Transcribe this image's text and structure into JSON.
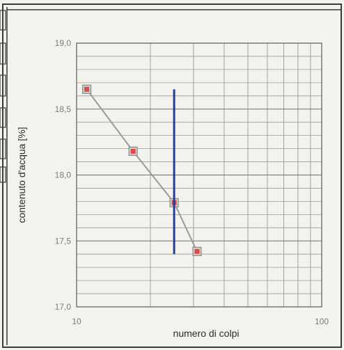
{
  "chart_data": {
    "type": "scatter",
    "xlabel": "numero di colpi",
    "ylabel": "contenuto d'acqua [%]",
    "x_scale": "log",
    "xlim": [
      10,
      100
    ],
    "ylim": [
      17.0,
      19.0
    ],
    "x_tick_labels": [
      "10",
      "100"
    ],
    "y_tick_labels": [
      "19,0",
      "18,5",
      "18,0",
      "17,5",
      "17,0"
    ],
    "y_tick_values": [
      19.0,
      18.5,
      18.0,
      17.5,
      17.0
    ],
    "grid": true,
    "series": [
      {
        "values_x": [
          11,
          17,
          25,
          31
        ],
        "values_y": [
          18.65,
          18.18,
          17.79,
          17.42
        ],
        "style": "line-with-square-markers",
        "line_color": "#9a9a9a",
        "marker_color": "#e04848"
      }
    ],
    "reference_line": {
      "x": 25,
      "y_range": [
        17.4,
        18.65
      ],
      "color": "#1f3f9a"
    }
  }
}
